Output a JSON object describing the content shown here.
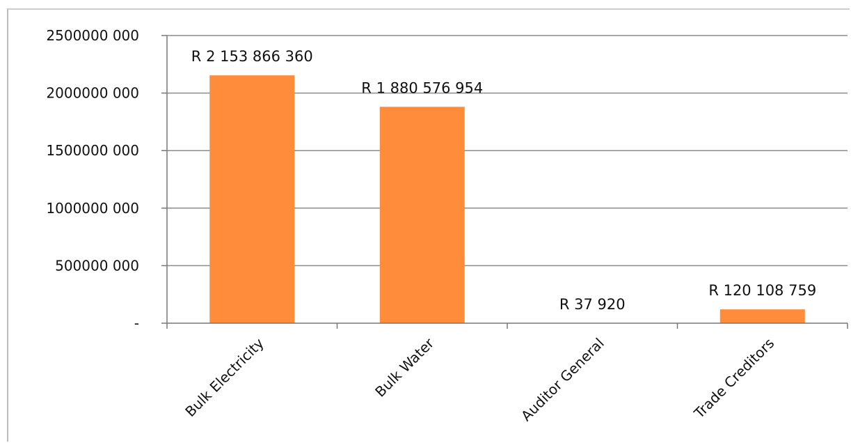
{
  "chart_data": {
    "type": "bar",
    "categories": [
      "Bulk Electricity",
      "Bulk Water",
      "Auditor General",
      "Trade Creditors"
    ],
    "values": [
      2153866360,
      1880576954,
      37920,
      120108759
    ],
    "data_labels": [
      "R 2 153 866 360",
      "R 1 880 576 954",
      "R 37 920",
      "R 120 108 759"
    ],
    "ylim": [
      0,
      2500000000
    ],
    "y_ticks": [
      0,
      500000000,
      1000000000,
      1500000000,
      2000000000,
      2500000000
    ],
    "y_tick_labels": [
      "-",
      "500000 000",
      "1000000 000",
      "1500000 000",
      "2000000 000",
      "2500000 000"
    ],
    "title": "",
    "xlabel": "",
    "ylabel": "",
    "grid": true,
    "legend": "none",
    "bar_color": "#FF8C3A",
    "grid_color": "#8c8c8c"
  }
}
